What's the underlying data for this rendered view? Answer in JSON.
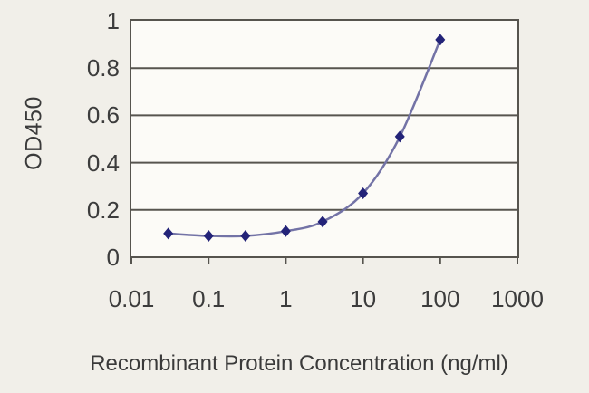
{
  "style": {
    "page_background": "#f1efe9",
    "plot_background": "#fcfbf7",
    "frame_color": "#56544e",
    "grid_color": "#57554f",
    "line_color": "#7373a6",
    "marker_color": "#232378",
    "text_color": "#3a3a3a"
  },
  "chart_data": {
    "type": "line",
    "title": "",
    "xlabel": "Recombinant Protein Concentration (ng/ml)",
    "ylabel": "OD450",
    "x_scale": "log",
    "xlim": [
      0.01,
      1000
    ],
    "ylim": [
      0,
      1
    ],
    "x": [
      0.03,
      0.1,
      0.3,
      1,
      3,
      10,
      30,
      100
    ],
    "y": [
      0.1,
      0.09,
      0.09,
      0.11,
      0.15,
      0.27,
      0.51,
      0.92
    ],
    "x_tick_labels": [
      "0.01",
      "0.1",
      "1",
      "10",
      "100",
      "1000"
    ],
    "y_tick_labels": [
      "1",
      "0.8",
      "0.6",
      "0.4",
      "0.2",
      "0"
    ],
    "y_grid": [
      0.8,
      0.6,
      0.4,
      0.2
    ],
    "grid": true,
    "legend": "none",
    "marker": "diamond"
  }
}
